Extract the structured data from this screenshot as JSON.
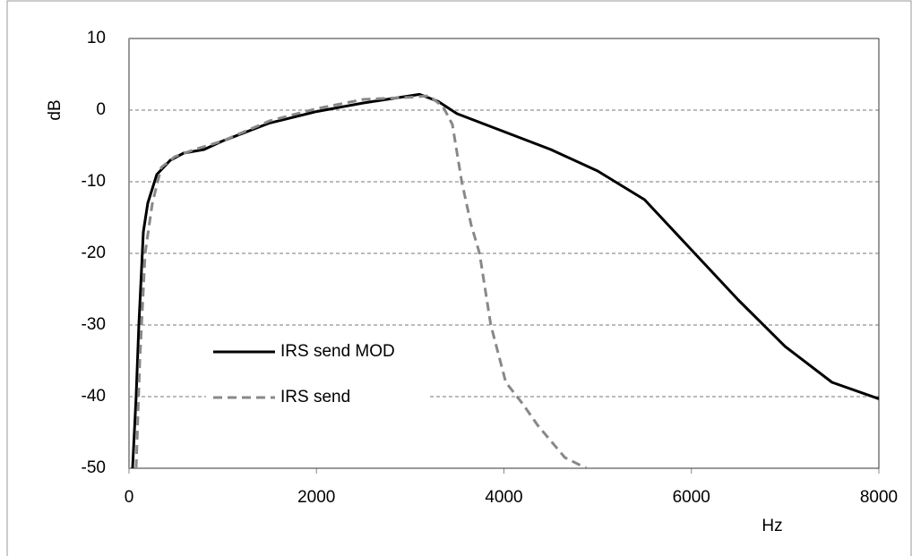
{
  "chart_data": {
    "type": "line",
    "x_label": "Hz",
    "y_label": "dB",
    "xlim": [
      0,
      8000
    ],
    "ylim": [
      -50,
      10
    ],
    "xticks": [
      0,
      2000,
      4000,
      6000,
      8000
    ],
    "yticks": [
      10,
      0,
      -10,
      -20,
      -30,
      -40,
      -50
    ],
    "grid": true,
    "legend_loc": "left",
    "series": [
      {
        "name": "IRS send MOD",
        "color": "#000000",
        "dash": "solid",
        "x": [
          38,
          76,
          105,
          153,
          200,
          296,
          440,
          583,
          800,
          1000,
          1500,
          2000,
          2500,
          3000,
          3100,
          3300,
          3500,
          4000,
          4500,
          5000,
          5500,
          6000,
          6500,
          7000,
          7500,
          8000
        ],
        "values": [
          -50,
          -40,
          -30,
          -17,
          -13,
          -9,
          -7,
          -6,
          -5.5,
          -4.3,
          -1.8,
          -0.2,
          1,
          2,
          2.2,
          1.2,
          -0.5,
          -3,
          -5.5,
          -8.5,
          -12.5,
          -19.5,
          -26.5,
          -33,
          -38,
          -40.3
        ]
      },
      {
        "name": "IRS send",
        "color": "#888888",
        "dash": "dashed",
        "x": [
          76,
          115,
          172,
          249,
          344,
          488,
          700,
          1000,
          1500,
          2000,
          2500,
          3000,
          3200,
          3350,
          3450,
          3550,
          3650,
          3740,
          3860,
          4020,
          4200,
          4360,
          4650,
          4880
        ],
        "values": [
          -50,
          -35,
          -20,
          -13,
          -8,
          -6.5,
          -5.5,
          -4.3,
          -1.5,
          0.2,
          1.5,
          1.8,
          2,
          0.5,
          -2,
          -10,
          -16,
          -20,
          -30,
          -38,
          -41,
          -44,
          -48.5,
          -50
        ]
      }
    ]
  }
}
